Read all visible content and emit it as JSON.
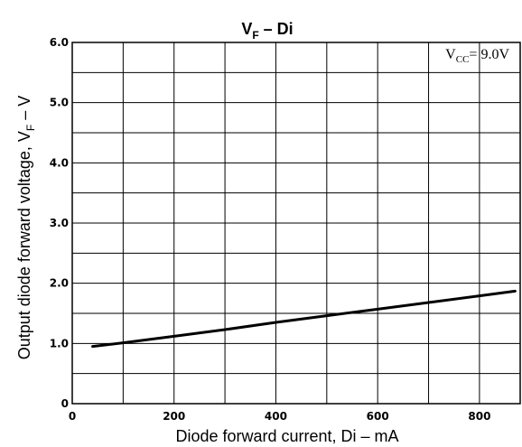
{
  "chart_data": {
    "type": "line",
    "title": {
      "main": "V",
      "sub": "F",
      "rest": " – Di"
    },
    "xlabel": "Diode forward current, Di – mA",
    "ylabel": {
      "main": "Output diode forward voltage, V",
      "sub": "F",
      "rest": " – V"
    },
    "xlim": [
      0,
      880
    ],
    "ylim": [
      0,
      6.0
    ],
    "x_ticks": [
      0,
      200,
      400,
      600,
      800
    ],
    "x_tick_labels": [
      "0",
      "200",
      "400",
      "600",
      "800"
    ],
    "y_ticks": [
      0,
      1.0,
      2.0,
      3.0,
      4.0,
      5.0,
      6.0
    ],
    "y_tick_labels": [
      "0",
      "1.0",
      "2.0",
      "3.0",
      "4.0",
      "5.0",
      "6.0"
    ],
    "grid": true,
    "annotation": {
      "main": "V",
      "sub": "CC",
      "rest": "= 9.0V"
    },
    "series": [
      {
        "x": [
          40,
          100,
          200,
          300,
          400,
          500,
          600,
          700,
          800,
          870
        ],
        "y": [
          0.95,
          1.01,
          1.12,
          1.23,
          1.35,
          1.46,
          1.57,
          1.68,
          1.79,
          1.87
        ]
      }
    ]
  }
}
